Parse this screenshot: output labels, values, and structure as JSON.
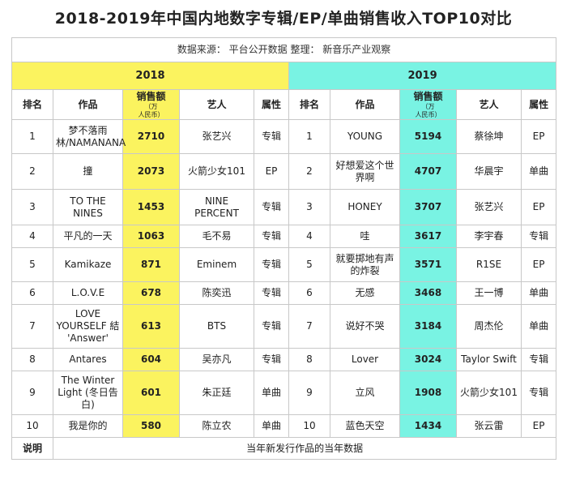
{
  "title": "2018-2019年中国内地数字专辑/EP/单曲销售收入TOP10对比",
  "source": {
    "text": "数据来源：  平台公开数据      整理：  新音乐产业观察"
  },
  "years": [
    "2018",
    "2019"
  ],
  "headers": {
    "rank": "排名",
    "work": "作品",
    "sales": "销售额",
    "unit_a": "（万",
    "unit_b": "人民币）",
    "artist": "艺人",
    "type": "属性"
  },
  "rows": [
    {
      "r18": "1",
      "w18": "梦不落雨林/NAMANANA",
      "s18": "2710",
      "a18": "张艺兴",
      "t18": "专辑",
      "r19": "1",
      "w19": "YOUNG",
      "s19": "5194",
      "a19": "蔡徐坤",
      "t19": "EP"
    },
    {
      "r18": "2",
      "w18": "撞",
      "s18": "2073",
      "a18": "火箭少女101",
      "t18": "EP",
      "r19": "2",
      "w19": "好想爱这个世界啊",
      "s19": "4707",
      "a19": "华晨宇",
      "t19": "单曲"
    },
    {
      "r18": "3",
      "w18": "TO THE NINES",
      "s18": "1453",
      "a18": "NINE PERCENT",
      "t18": "专辑",
      "r19": "3",
      "w19": "HONEY",
      "s19": "3707",
      "a19": "张艺兴",
      "t19": "EP"
    },
    {
      "r18": "4",
      "w18": "平凡的一天",
      "s18": "1063",
      "a18": "毛不易",
      "t18": "专辑",
      "r19": "4",
      "w19": "哇",
      "s19": "3617",
      "a19": "李宇春",
      "t19": "专辑"
    },
    {
      "r18": "5",
      "w18": "Kamikaze",
      "s18": "871",
      "a18": "Eminem",
      "t18": "专辑",
      "r19": "5",
      "w19": "就要掷地有声的炸裂",
      "s19": "3571",
      "a19": "R1SE",
      "t19": "EP"
    },
    {
      "r18": "6",
      "w18": "L.O.V.E",
      "s18": "678",
      "a18": "陈奕迅",
      "t18": "专辑",
      "r19": "6",
      "w19": "无感",
      "s19": "3468",
      "a19": "王一博",
      "t19": "单曲"
    },
    {
      "r18": "7",
      "w18": "LOVE YOURSELF 結 'Answer'",
      "s18": "613",
      "a18": "BTS",
      "t18": "专辑",
      "r19": "7",
      "w19": "说好不哭",
      "s19": "3184",
      "a19": "周杰伦",
      "t19": "单曲"
    },
    {
      "r18": "8",
      "w18": "Antares",
      "s18": "604",
      "a18": "吴亦凡",
      "t18": "专辑",
      "r19": "8",
      "w19": "Lover",
      "s19": "3024",
      "a19": "Taylor Swift",
      "t19": "专辑"
    },
    {
      "r18": "9",
      "w18": "The Winter Light (冬日告白)",
      "s18": "601",
      "a18": "朱正廷",
      "t18": "单曲",
      "r19": "9",
      "w19": "立风",
      "s19": "1908",
      "a19": "火箭少女101",
      "t19": "专辑"
    },
    {
      "r18": "10",
      "w18": "我是你的",
      "s18": "580",
      "a18": "陈立农",
      "t18": "单曲",
      "r19": "10",
      "w19": "蓝色天空",
      "s19": "1434",
      "a19": "张云雷",
      "t19": "EP"
    }
  ],
  "note": {
    "label": "说明",
    "text": "当年新发行作品的当年数据"
  }
}
